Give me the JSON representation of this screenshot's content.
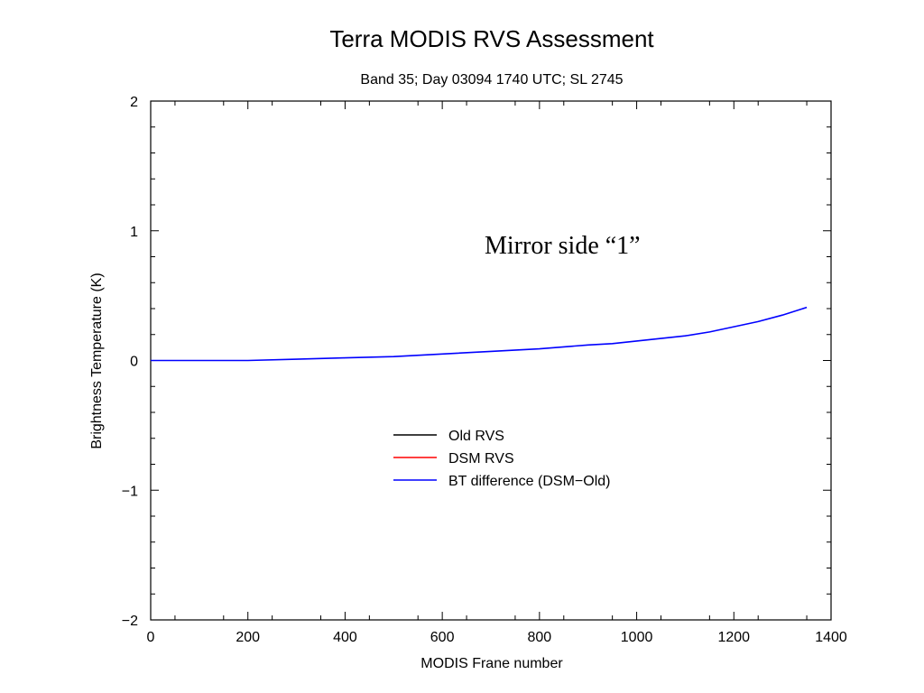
{
  "chart_data": {
    "type": "line",
    "title": "Terra MODIS RVS Assessment",
    "subtitle": "Band 35; Day 03094 1740 UTC; SL 2745",
    "xlabel": "MODIS Frane number",
    "ylabel": "Brightness Temperature (K)",
    "xlim": [
      0,
      1400
    ],
    "ylim": [
      -2,
      2
    ],
    "x_ticks": [
      0,
      200,
      400,
      600,
      800,
      1000,
      1200,
      1400
    ],
    "y_ticks": [
      -2,
      -1,
      0,
      1,
      2
    ],
    "x_tick_labels": [
      "0",
      "200",
      "400",
      "600",
      "800",
      "1000",
      "1200",
      "1400"
    ],
    "y_tick_labels": [
      "−2",
      "−1",
      "0",
      "1",
      "2"
    ],
    "annotation": "Mirror side “1”",
    "legend_position": "center",
    "grid": false,
    "series": [
      {
        "name": "Old RVS",
        "color": "#000000",
        "x": [],
        "y": []
      },
      {
        "name": "DSM RVS",
        "color": "#ff0000",
        "x": [],
        "y": []
      },
      {
        "name": "BT difference (DSM−Old)",
        "color": "#0000ff",
        "x": [
          0,
          100,
          200,
          300,
          400,
          500,
          600,
          700,
          800,
          900,
          950,
          1000,
          1050,
          1100,
          1150,
          1200,
          1250,
          1300,
          1350
        ],
        "y": [
          0.0,
          0.0,
          0.0,
          0.01,
          0.02,
          0.03,
          0.05,
          0.07,
          0.09,
          0.12,
          0.13,
          0.15,
          0.17,
          0.19,
          0.22,
          0.26,
          0.3,
          0.35,
          0.41
        ]
      }
    ]
  }
}
